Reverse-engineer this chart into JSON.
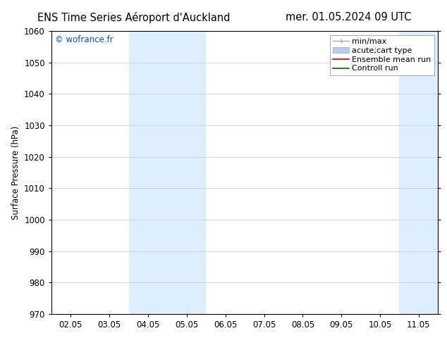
{
  "title_left": "ENS Time Series Aéroport d'Auckland",
  "title_right": "mer. 01.05.2024 09 UTC",
  "ylabel": "Surface Pressure (hPa)",
  "xlim_labels": [
    "02.05",
    "03.05",
    "04.05",
    "05.05",
    "06.05",
    "07.05",
    "08.05",
    "09.05",
    "10.05",
    "11.05"
  ],
  "ylim": [
    970,
    1060
  ],
  "yticks": [
    970,
    980,
    990,
    1000,
    1010,
    1020,
    1030,
    1040,
    1050,
    1060
  ],
  "watermark": "© wofrance.fr",
  "watermark_color": "#0055cc",
  "background_color": "#ffffff",
  "band_color": "#ddeeff",
  "band_indices": [
    2,
    3,
    9
  ],
  "grid_color": "#cccccc",
  "tick_label_fontsize": 8.5,
  "title_fontsize": 10.5,
  "ylabel_fontsize": 8.5,
  "legend_fontsize": 8,
  "minmax_color": "#aaaaaa",
  "ensemble_color": "#cc0000",
  "control_color": "#006600",
  "patch_color": "#bbccee",
  "patch_edge_color": "#9aaabb"
}
